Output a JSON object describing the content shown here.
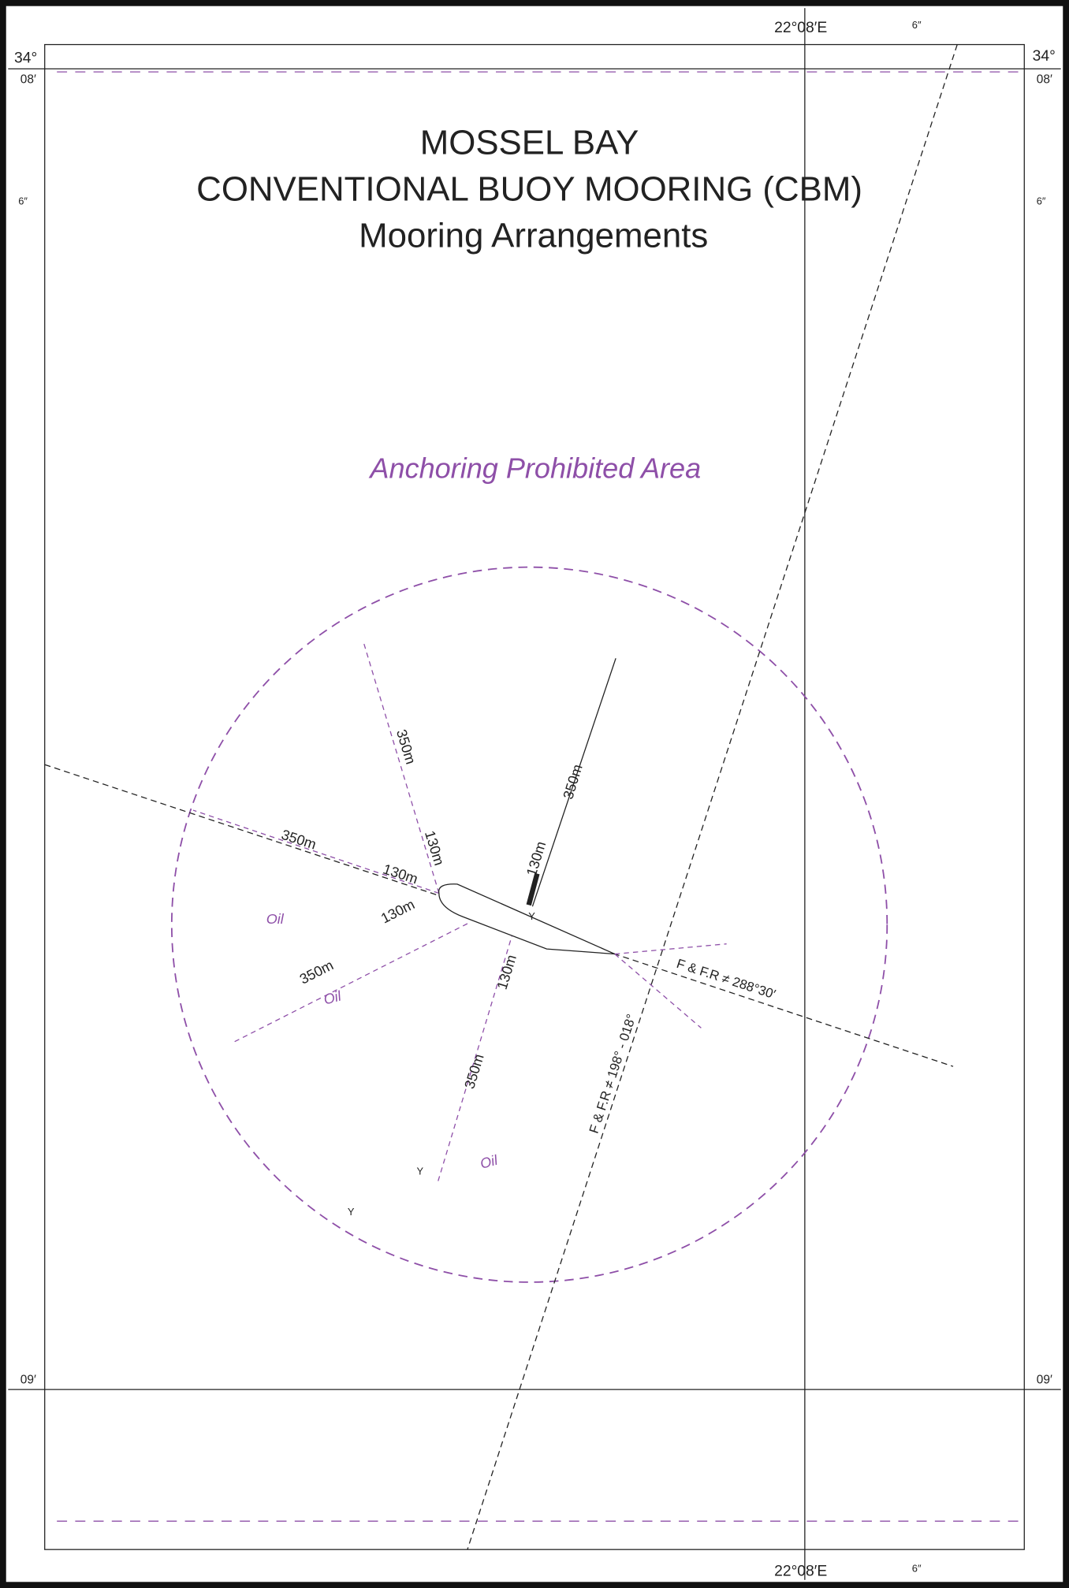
{
  "title": {
    "line1": "MOSSEL BAY",
    "line2": "CONVENTIONAL BUOY MOORING (CBM)",
    "line3": "Mooring Arrangements"
  },
  "area_label": "Anchoring Prohibited Area",
  "border": {
    "top_lon": "22°08′E",
    "bottom_lon": "22°08′E",
    "top_sec": "6″",
    "bottom_sec": "6″",
    "lat_deg_left": "34°",
    "lat_deg_right": "34°",
    "lat_min_top_left": "08′",
    "lat_min_top_right": "08′",
    "lat_sec_left": "6″",
    "lat_sec_right": "6″",
    "lat_min_bottom_left": "09′",
    "lat_min_bottom_right": "09′"
  },
  "leading_lines": [
    "F & F.R ≠ 288°30′",
    "F & F.R ≠ 198° - 018°"
  ],
  "distances": [
    "350m",
    "130m",
    "350m",
    "130m",
    "130m",
    "350m",
    "130m",
    "350m",
    "130m",
    "350m"
  ],
  "pipeline_labels": [
    "Oil",
    "Oil",
    "Oil"
  ],
  "buoy_letters": [
    "Y",
    "Y",
    "Y"
  ]
}
